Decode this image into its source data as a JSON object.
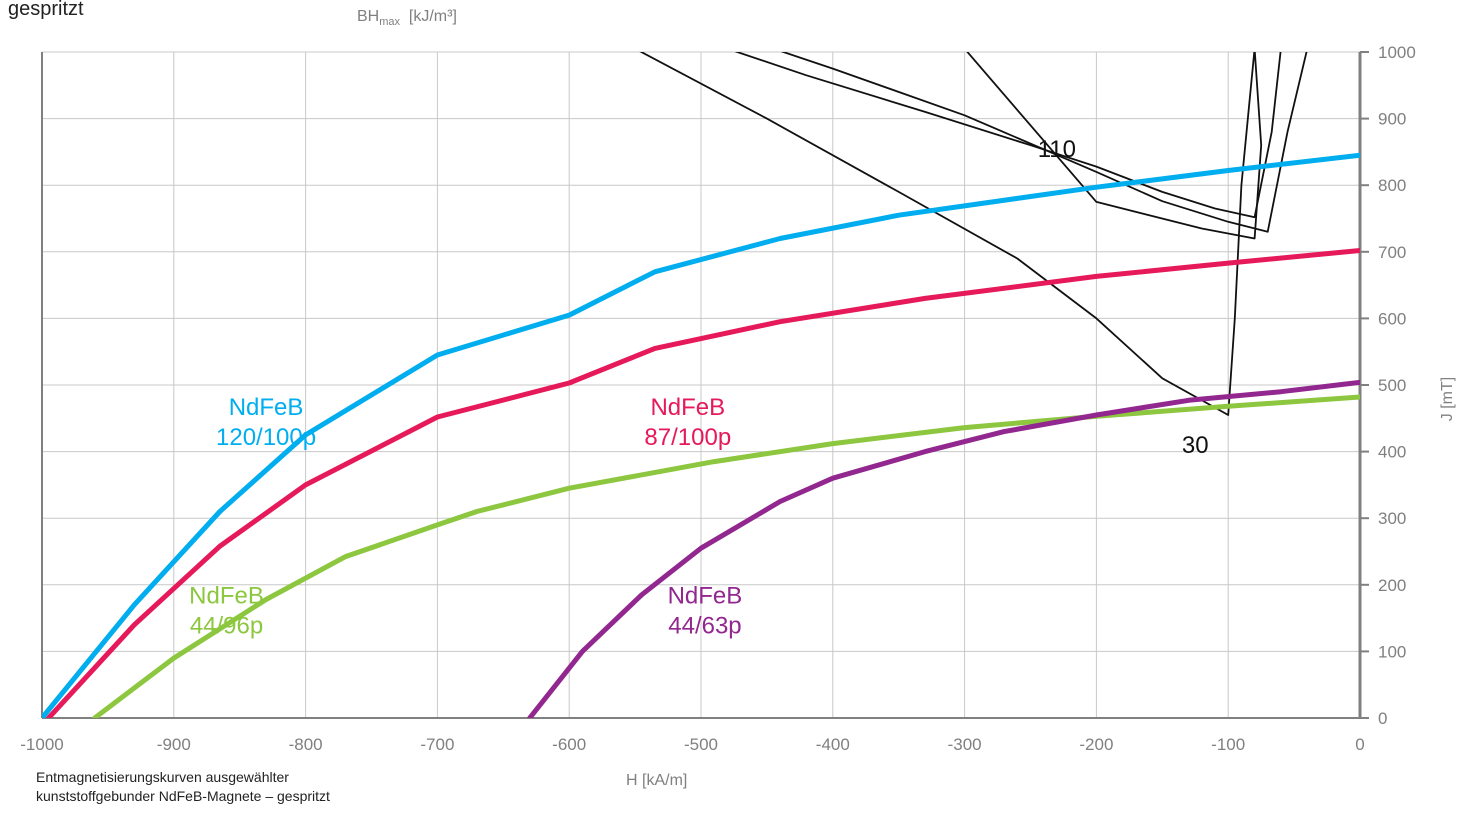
{
  "header": {
    "note": "gespritzt"
  },
  "caption": {
    "line1": "Entmagnetisierungskurven ausgewählter",
    "line2": "kunststoffgebunder NdFeB-Magnete – gespritzt"
  },
  "chart_data": {
    "type": "line",
    "title": "",
    "xlabel": "H [kA/m]",
    "ylabel": "J [mT]",
    "secondary_label": {
      "main": "BH",
      "sub": "max",
      "unit": "[kJ/m³]"
    },
    "xlim": [
      -1000,
      0
    ],
    "ylim": [
      0,
      1000
    ],
    "x_ticks": [
      -1000,
      -900,
      -800,
      -700,
      -600,
      -500,
      -400,
      -300,
      -200,
      -100,
      0
    ],
    "y_ticks": [
      0,
      100,
      200,
      300,
      400,
      500,
      600,
      700,
      800,
      900,
      1000
    ],
    "grid": true,
    "y_axis_side": "right",
    "series": [
      {
        "name_lines": [
          "NdFeB",
          "120/100p"
        ],
        "color": "#00aeef",
        "points": [
          [
            -1000,
            0
          ],
          [
            -930,
            170
          ],
          [
            -865,
            310
          ],
          [
            -800,
            425
          ],
          [
            -700,
            545
          ],
          [
            -600,
            605
          ],
          [
            -535,
            670
          ],
          [
            -440,
            720
          ],
          [
            -350,
            755
          ],
          [
            -200,
            797
          ],
          [
            -100,
            822
          ],
          [
            0,
            845
          ]
        ]
      },
      {
        "name_lines": [
          "NdFeB",
          "87/100p"
        ],
        "color": "#e6195a",
        "points": [
          [
            -995,
            0
          ],
          [
            -930,
            140
          ],
          [
            -865,
            258
          ],
          [
            -800,
            350
          ],
          [
            -700,
            452
          ],
          [
            -600,
            503
          ],
          [
            -535,
            555
          ],
          [
            -440,
            595
          ],
          [
            -330,
            630
          ],
          [
            -200,
            663
          ],
          [
            -100,
            683
          ],
          [
            0,
            702
          ]
        ]
      },
      {
        "name_lines": [
          "NdFeB",
          "44/96p"
        ],
        "color": "#8dc63f",
        "points": [
          [
            -960,
            0
          ],
          [
            -900,
            90
          ],
          [
            -830,
            178
          ],
          [
            -770,
            242
          ],
          [
            -700,
            290
          ],
          [
            -670,
            310
          ],
          [
            -600,
            345
          ],
          [
            -490,
            385
          ],
          [
            -400,
            412
          ],
          [
            -300,
            436
          ],
          [
            -200,
            453
          ],
          [
            -100,
            468
          ],
          [
            0,
            482
          ]
        ]
      },
      {
        "name_lines": [
          "NdFeB",
          "44/63p"
        ],
        "color": "#92278f",
        "points": [
          [
            -630,
            0
          ],
          [
            -590,
            100
          ],
          [
            -545,
            185
          ],
          [
            -500,
            255
          ],
          [
            -440,
            325
          ],
          [
            -400,
            360
          ],
          [
            -330,
            400
          ],
          [
            -270,
            430
          ],
          [
            -200,
            455
          ],
          [
            -130,
            477
          ],
          [
            -60,
            490
          ],
          [
            0,
            504
          ]
        ]
      }
    ],
    "bh_contours": [
      {
        "label": "",
        "points": [
          [
            -445,
            1005
          ],
          [
            -400,
            975
          ],
          [
            -300,
            905
          ],
          [
            -200,
            820
          ],
          [
            -150,
            776
          ],
          [
            -100,
            745
          ],
          [
            -70,
            730
          ],
          [
            -55,
            880
          ],
          [
            -40,
            1005
          ]
        ]
      },
      {
        "label": "110",
        "points": [
          [
            -480,
            1005
          ],
          [
            -420,
            965
          ],
          [
            -330,
            910
          ],
          [
            -250,
            860
          ],
          [
            -200,
            828
          ],
          [
            -150,
            790
          ],
          [
            -110,
            765
          ],
          [
            -80,
            752
          ],
          [
            -67,
            880
          ],
          [
            -60,
            1005
          ]
        ]
      },
      {
        "label": "",
        "points": [
          [
            -300,
            1005
          ],
          [
            -200,
            775
          ],
          [
            -120,
            735
          ],
          [
            -80,
            720
          ],
          [
            -75,
            860
          ],
          [
            -80,
            1005
          ]
        ]
      },
      {
        "label": "30",
        "points": [
          [
            -550,
            1005
          ],
          [
            -450,
            900
          ],
          [
            -350,
            790
          ],
          [
            -260,
            690
          ],
          [
            -200,
            600
          ],
          [
            -150,
            510
          ],
          [
            -100,
            455
          ],
          [
            -95,
            600
          ],
          [
            -90,
            800
          ],
          [
            -80,
            1005
          ]
        ]
      }
    ],
    "contour_labels": [
      {
        "text": "110",
        "x": -230,
        "y": 842
      },
      {
        "text": "30",
        "x": -125,
        "y": 398
      }
    ]
  }
}
